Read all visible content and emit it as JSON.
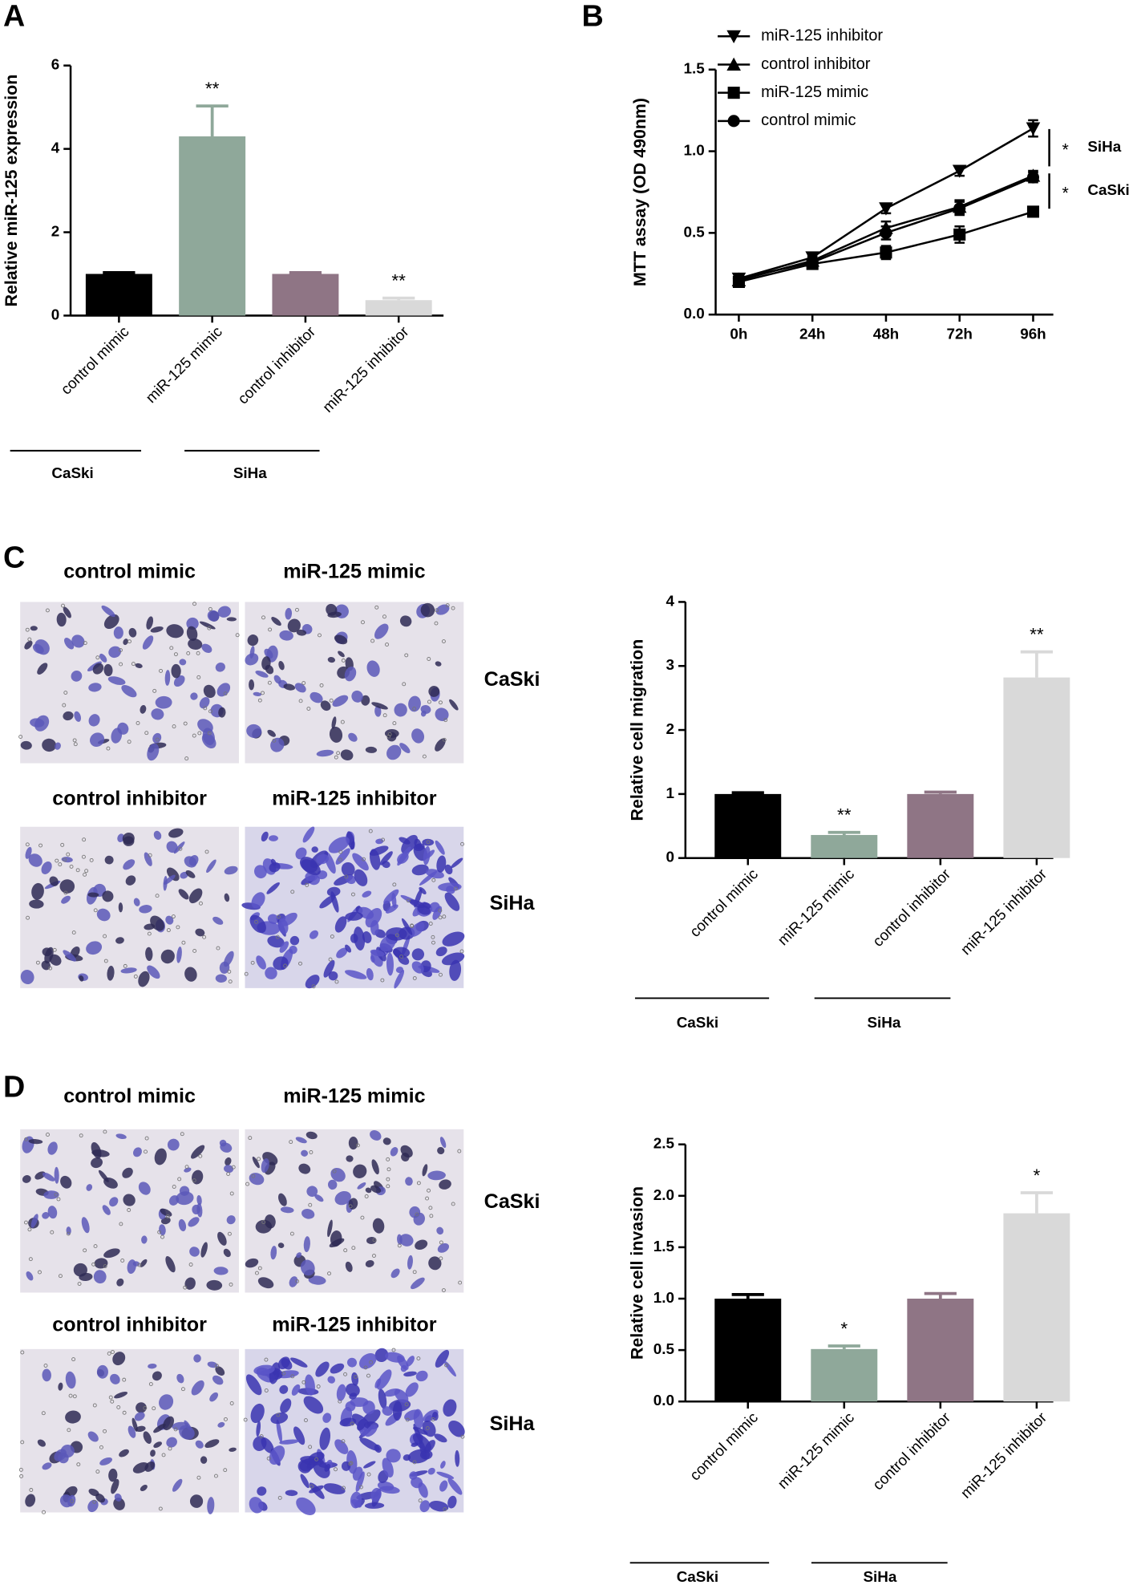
{
  "chart_data": [
    {
      "type": "bar",
      "panel_label": "A",
      "y_label": "Relative miR-125 expression",
      "categories": [
        "control mimic",
        "miR-125 mimic",
        "control inhibitor",
        "miR-125 inhibitor"
      ],
      "values": [
        1.0,
        4.3,
        1.0,
        0.37
      ],
      "errors": [
        0.03,
        0.73,
        0.03,
        0.05
      ],
      "colors": [
        "#000000",
        "#8fa89a",
        "#8f7585",
        "#d9d9d9"
      ],
      "significance": [
        null,
        "**",
        null,
        "**"
      ],
      "groups": [
        "CaSki",
        "SiHa"
      ],
      "ylim": [
        0,
        6
      ],
      "yticks": [
        0,
        2,
        4,
        6
      ]
    },
    {
      "type": "line",
      "panel_label": "B",
      "y_label": "MTT assay (OD 490nm)",
      "categories": [
        "0h",
        "24h",
        "48h",
        "72h",
        "96h"
      ],
      "series": [
        {
          "name": "miR-125 inhibitor",
          "marker": "triangle-down",
          "color": "#000000",
          "values": [
            0.22,
            0.35,
            0.65,
            0.88,
            1.14
          ],
          "errors": [
            0.03,
            0.03,
            0.03,
            0.03,
            0.05
          ]
        },
        {
          "name": "control inhibitor",
          "marker": "triangle-up",
          "color": "#000000",
          "values": [
            0.21,
            0.33,
            0.53,
            0.66,
            0.85
          ],
          "errors": [
            0.03,
            0.03,
            0.04,
            0.04,
            0.03
          ]
        },
        {
          "name": "miR-125 mimic",
          "marker": "square",
          "color": "#000000",
          "values": [
            0.2,
            0.31,
            0.38,
            0.49,
            0.63
          ],
          "errors": [
            0.03,
            0.03,
            0.04,
            0.05,
            0.03
          ]
        },
        {
          "name": "control mimic",
          "marker": "circle",
          "color": "#000000",
          "values": [
            0.22,
            0.32,
            0.5,
            0.65,
            0.84
          ],
          "errors": [
            0.03,
            0.03,
            0.04,
            0.04,
            0.03
          ]
        }
      ],
      "brackets": [
        {
          "mark": "*",
          "label": "SiHa"
        },
        {
          "mark": "*",
          "label": "CaSki"
        }
      ],
      "ylim": [
        0,
        1.5
      ],
      "yticks": [
        {
          "value": 0,
          "label": "0.0"
        },
        {
          "value": 0.5,
          "label": "0.5"
        },
        {
          "value": 1,
          "label": "1.0"
        },
        {
          "value": 1.5,
          "label": "1.5"
        }
      ]
    },
    {
      "type": "bar",
      "panel_label": "C",
      "y_label": "Relative cell migration",
      "image_labels": [
        "control mimic",
        "miR-125 mimic",
        "control inhibitor",
        "miR-125 inhibitor"
      ],
      "image_row_labels": [
        "CaSki",
        "SiHa"
      ],
      "categories": [
        "control mimic",
        "miR-125 mimic",
        "control inhibitor",
        "miR-125 inhibitor"
      ],
      "values": [
        1.0,
        0.36,
        1.0,
        2.82
      ],
      "errors": [
        0.02,
        0.04,
        0.03,
        0.4
      ],
      "colors": [
        "#000000",
        "#8fa89a",
        "#8f7585",
        "#d9d9d9"
      ],
      "significance": [
        null,
        "**",
        null,
        "**"
      ],
      "groups": [
        "CaSki",
        "SiHa"
      ],
      "ylim": [
        0,
        4
      ],
      "yticks": [
        0,
        1,
        2,
        3,
        4
      ]
    },
    {
      "type": "bar",
      "panel_label": "D",
      "y_label": "Relative cell invasion",
      "image_labels": [
        "control mimic",
        "miR-125 mimic",
        "control inhibitor",
        "miR-125 inhibitor"
      ],
      "image_row_labels": [
        "CaSki",
        "SiHa"
      ],
      "categories": [
        "control mimic",
        "miR-125 mimic",
        "control inhibitor",
        "miR-125 inhibitor"
      ],
      "values": [
        1.0,
        0.51,
        1.0,
        1.83
      ],
      "errors": [
        0.04,
        0.03,
        0.05,
        0.2
      ],
      "colors": [
        "#000000",
        "#8fa89a",
        "#8f7585",
        "#d9d9d9"
      ],
      "significance": [
        null,
        "*",
        null,
        "*"
      ],
      "groups": [
        "CaSki",
        "SiHa"
      ],
      "ylim": [
        0,
        2.5
      ],
      "yticks": [
        {
          "value": 0,
          "label": "0.0"
        },
        {
          "value": 0.5,
          "label": "0.5"
        },
        {
          "value": 1,
          "label": "1.0"
        },
        {
          "value": 1.5,
          "label": "1.5"
        },
        {
          "value": 2,
          "label": "2.0"
        },
        {
          "value": 2.5,
          "label": "2.5"
        }
      ]
    }
  ]
}
